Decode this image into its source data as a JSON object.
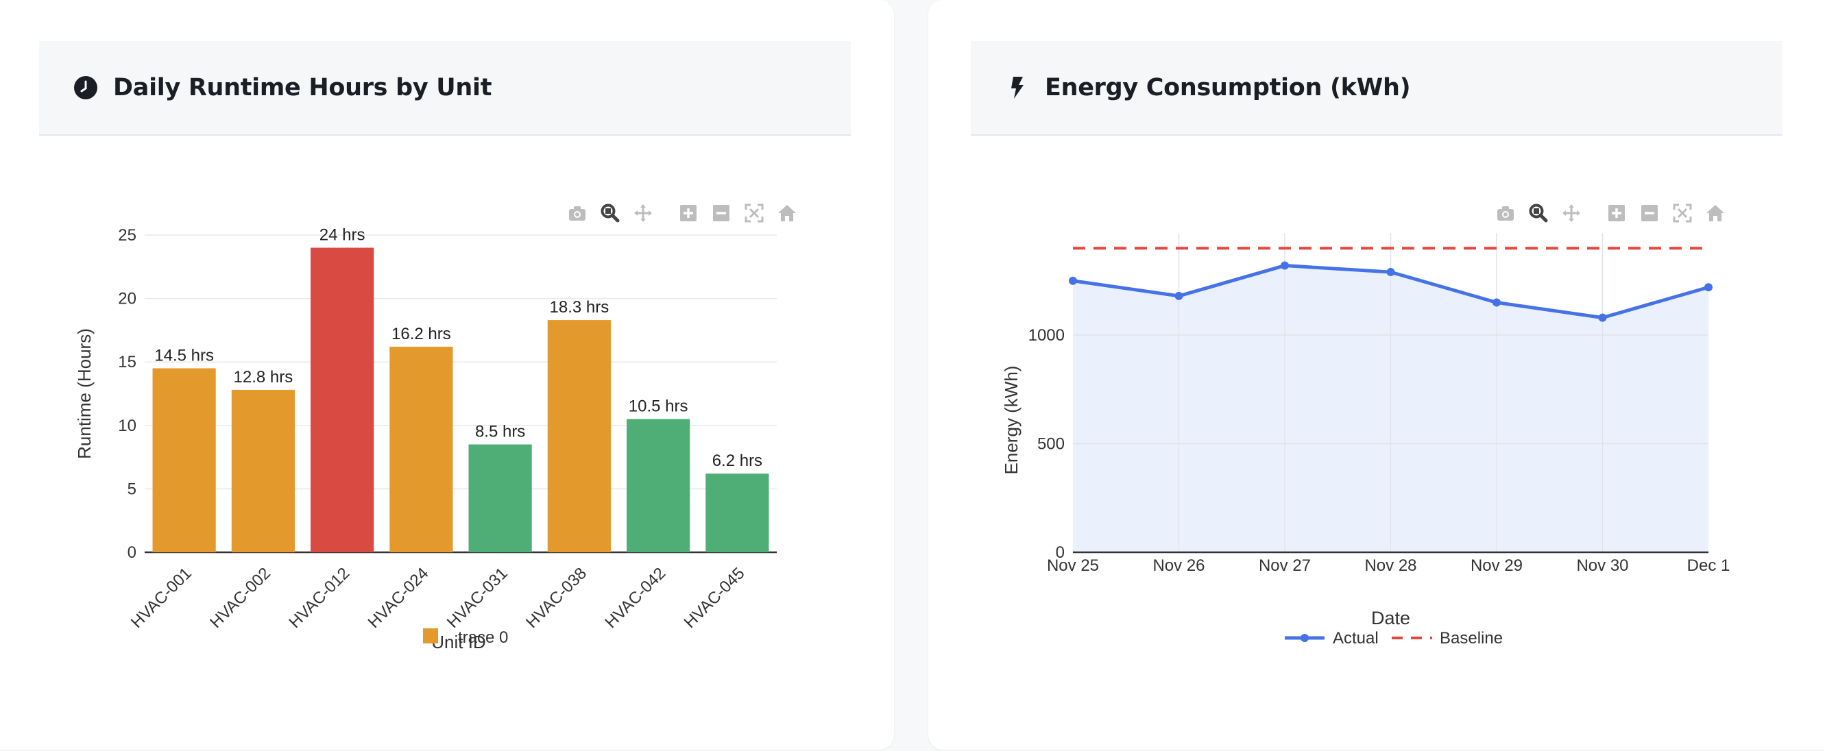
{
  "left_panel": {
    "title": "Daily Runtime Hours by Unit",
    "icon": "clock-icon"
  },
  "right_panel": {
    "title": "Energy Consumption (kWh)",
    "icon": "bolt-icon"
  },
  "modebar_icons": [
    "camera-icon",
    "zoom-icon",
    "pan-icon",
    "zoom-in-icon",
    "zoom-out-icon",
    "autoscale-icon",
    "home-icon"
  ],
  "colors": {
    "warning": "#e4992d",
    "critical": "#d94a43",
    "normal": "#4fae76",
    "actual_line": "#4572e6",
    "actual_fill": "#ebf0fd",
    "baseline": "#e7463c"
  },
  "chart_data": [
    {
      "type": "bar",
      "categories": [
        "HVAC-001",
        "HVAC-002",
        "HVAC-012",
        "HVAC-024",
        "HVAC-031",
        "HVAC-038",
        "HVAC-042",
        "HVAC-045"
      ],
      "values": [
        14.5,
        12.8,
        24,
        16.2,
        8.5,
        18.3,
        10.5,
        6.2
      ],
      "data_labels": [
        "14.5 hrs",
        "12.8 hrs",
        "24 hrs",
        "16.2 hrs",
        "8.5 hrs",
        "18.3 hrs",
        "10.5 hrs",
        "6.2 hrs"
      ],
      "bar_colors": [
        "#e4992d",
        "#e4992d",
        "#d94a43",
        "#e4992d",
        "#4fae76",
        "#e4992d",
        "#4fae76",
        "#4fae76"
      ],
      "xlabel": "Unit ID",
      "ylabel": "Runtime (Hours)",
      "ylim": [
        0,
        25
      ],
      "yticks": [
        "0",
        "5",
        "10",
        "15",
        "20",
        "25"
      ],
      "legend": {
        "entries": [
          "trace 0"
        ],
        "placement": "bottom"
      },
      "grid": true
    },
    {
      "type": "area",
      "x": [
        "Nov 25",
        "Nov 26",
        "Nov 27",
        "Nov 28",
        "Nov 29",
        "Nov 30",
        "Dec 1"
      ],
      "series": [
        {
          "name": "Actual",
          "values": [
            1250,
            1180,
            1320,
            1290,
            1150,
            1080,
            1220
          ],
          "style": "line+markers",
          "fill": "tozeroy"
        },
        {
          "name": "Baseline",
          "values": [
            1400,
            1400,
            1400,
            1400,
            1400,
            1400,
            1400
          ],
          "style": "dashed"
        }
      ],
      "xlabel": "Date",
      "ylabel": "Energy (kWh)",
      "ylim": [
        0,
        1470
      ],
      "yticks": [
        "0",
        "500",
        "1000"
      ],
      "legend": {
        "placement": "bottom"
      },
      "grid": true
    }
  ]
}
